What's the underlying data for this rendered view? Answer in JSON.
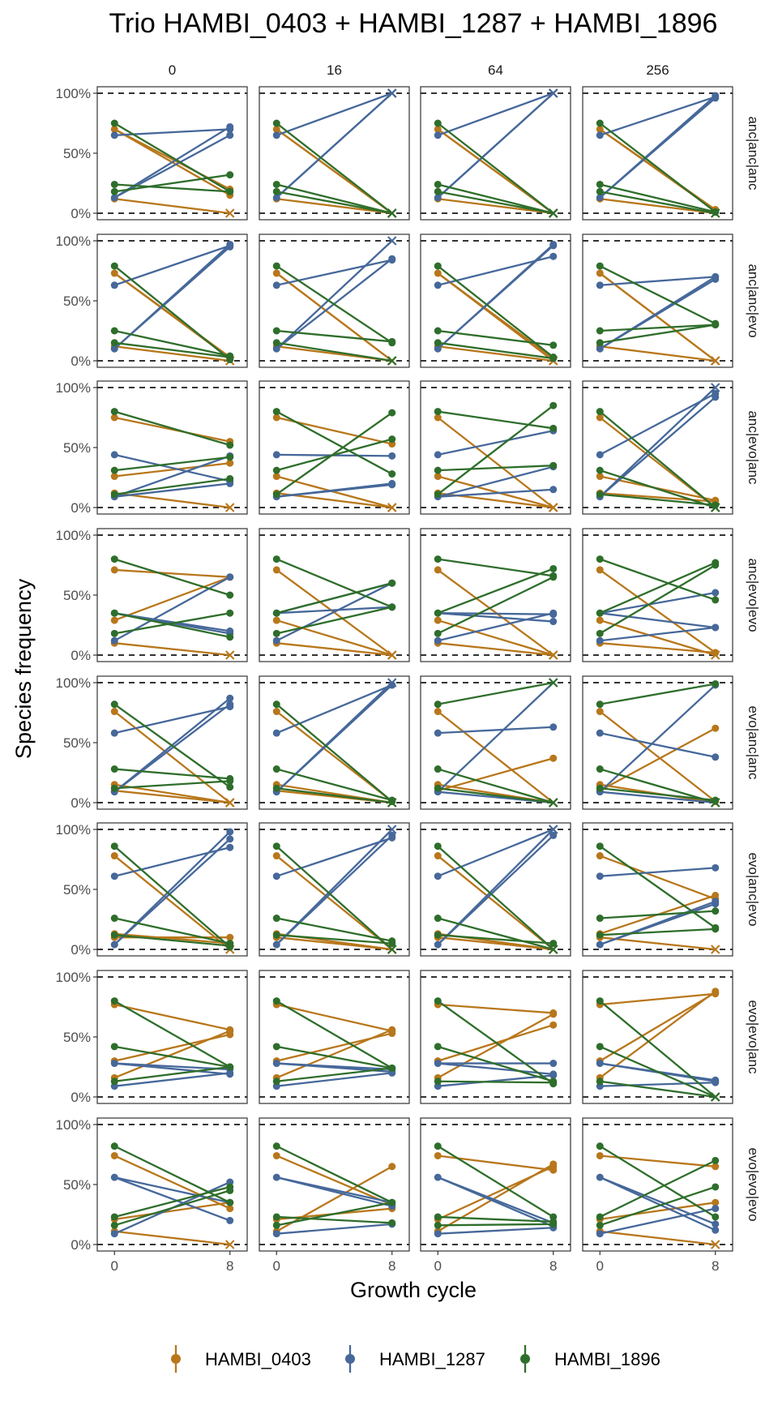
{
  "chart_data": {
    "type": "line",
    "title": "Trio HAMBI_0403 + HAMBI_1287 + HAMBI_1896",
    "xlabel": "Growth cycle",
    "ylabel": "Species frequency",
    "x_ticks": [
      "0",
      "8"
    ],
    "y_ticks": [
      "0%",
      "50%",
      "100%"
    ],
    "ylim": [
      0,
      1
    ],
    "reference_lines": [
      0,
      1
    ],
    "column_facets": [
      "0",
      "16",
      "64",
      "256"
    ],
    "row_facets": [
      "anc|anc|anc",
      "anc|anc|evo",
      "anc|evo|anc",
      "anc|evo|evo",
      "evo|anc|anc",
      "evo|anc|evo",
      "evo|evo|anc",
      "evo|evo|evo"
    ],
    "species": [
      {
        "name": "HAMBI_0403",
        "color": "#B8771B"
      },
      {
        "name": "HAMBI_1287",
        "color": "#46689A"
      },
      {
        "name": "HAMBI_1896",
        "color": "#2E6E2B"
      }
    ],
    "legend_position": "bottom",
    "start_frequencies": [
      [
        [
          0.12,
          0.7
        ],
        [
          0.65,
          0.13
        ],
        [
          0.24,
          0.18,
          0.75
        ]
      ],
      [
        [
          0.12,
          0.73
        ],
        [
          0.63,
          0.1
        ],
        [
          0.25,
          0.15,
          0.79
        ]
      ],
      [
        [
          0.12,
          0.26,
          0.75
        ],
        [
          0.44,
          0.09
        ],
        [
          0.31,
          0.11,
          0.8
        ]
      ],
      [
        [
          0.1,
          0.29,
          0.71
        ],
        [
          0.12,
          0.35
        ],
        [
          0.18,
          0.35,
          0.8
        ]
      ],
      [
        [
          0.1,
          0.15,
          0.76
        ],
        [
          0.58,
          0.09
        ],
        [
          0.28,
          0.12,
          0.82
        ]
      ],
      [
        [
          0.1,
          0.13,
          0.78
        ],
        [
          0.61,
          0.04
        ],
        [
          0.26,
          0.12,
          0.86
        ]
      ],
      [
        [
          0.16,
          0.3,
          0.77
        ],
        [
          0.09,
          0.28
        ],
        [
          0.42,
          0.13,
          0.8
        ]
      ],
      [
        [
          0.11,
          0.21,
          0.74
        ],
        [
          0.09,
          0.56
        ],
        [
          0.23,
          0.16,
          0.82
        ]
      ]
    ],
    "end_frequencies": [
      [
        [
          [
            0.0,
            0.15,
            0.2
          ],
          [
            0.7,
            0.72,
            0.65
          ],
          [
            0.18,
            0.32,
            0.18
          ]
        ],
        [
          [
            0.0,
            0.0,
            0.0
          ],
          [
            1.0,
            1.0,
            1.0
          ],
          [
            0.0,
            0.0,
            0.0
          ]
        ],
        [
          [
            0.0,
            0.0,
            0.0
          ],
          [
            1.0,
            1.0,
            1.0
          ],
          [
            0.0,
            0.0,
            0.0
          ]
        ],
        [
          [
            0.0,
            0.02,
            0.03
          ],
          [
            0.97,
            0.98,
            0.96
          ],
          [
            0.01,
            0.0,
            0.01
          ]
        ]
      ],
      [
        [
          [
            0.0,
            0.02,
            0.03
          ],
          [
            0.96,
            0.95,
            0.97
          ],
          [
            0.04,
            0.03,
            0.01
          ]
        ],
        [
          [
            0.0,
            0.0,
            0.0
          ],
          [
            0.84,
            1.0,
            0.85
          ],
          [
            0.16,
            0.0,
            0.15
          ]
        ],
        [
          [
            0.0,
            0.02,
            0.0
          ],
          [
            0.87,
            0.96,
            0.97
          ],
          [
            0.13,
            0.02,
            0.03
          ]
        ],
        [
          [
            0.0,
            0.0,
            0.0
          ],
          [
            0.7,
            0.7,
            0.68
          ],
          [
            0.3,
            0.3,
            0.31
          ]
        ]
      ],
      [
        [
          [
            0.0,
            0.37,
            0.55
          ],
          [
            0.22,
            0.2,
            0.43
          ],
          [
            0.42,
            0.24,
            0.52
          ]
        ],
        [
          [
            0.0,
            0.0,
            0.53
          ],
          [
            0.43,
            0.2,
            0.19
          ],
          [
            0.57,
            0.79,
            0.28
          ]
        ],
        [
          [
            0.0,
            0.0,
            0.0
          ],
          [
            0.64,
            0.15,
            0.34
          ],
          [
            0.35,
            0.85,
            0.66
          ]
        ],
        [
          [
            0.05,
            0.06,
            0.0
          ],
          [
            0.95,
            0.92,
            1.0
          ],
          [
            0.0,
            0.02,
            0.0
          ]
        ]
      ],
      [
        [
          [
            0.0,
            0.65,
            0.65
          ],
          [
            0.65,
            0.2,
            0.18
          ],
          [
            0.35,
            0.15,
            0.5
          ]
        ],
        [
          [
            0.0,
            0.0,
            0.0
          ],
          [
            0.6,
            0.4,
            0.6
          ],
          [
            0.4,
            0.6,
            0.4
          ]
        ],
        [
          [
            0.0,
            0.0,
            0.0
          ],
          [
            0.35,
            0.28,
            0.34
          ],
          [
            0.65,
            0.72,
            0.66
          ]
        ],
        [
          [
            0.02,
            0.0,
            0.02
          ],
          [
            0.23,
            0.23,
            0.52
          ],
          [
            0.75,
            0.77,
            0.46
          ]
        ]
      ],
      [
        [
          [
            0.0,
            0.0,
            0.0
          ],
          [
            0.8,
            0.82,
            0.87
          ],
          [
            0.2,
            0.18,
            0.13
          ]
        ],
        [
          [
            0.0,
            0.0,
            0.01
          ],
          [
            0.98,
            1.0,
            0.98
          ],
          [
            0.02,
            0.0,
            0.01
          ]
        ],
        [
          [
            0.37,
            0.0,
            0.0
          ],
          [
            0.63,
            1.0,
            0.0
          ],
          [
            0.0,
            0.0,
            1.0
          ]
        ],
        [
          [
            0.62,
            0.0,
            0.01
          ],
          [
            0.38,
            0.98,
            0.0
          ],
          [
            0.0,
            0.02,
            0.99
          ]
        ]
      ],
      [
        [
          [
            0.1,
            0.05,
            0.0
          ],
          [
            0.85,
            0.92,
            0.98
          ],
          [
            0.05,
            0.03,
            0.02
          ]
        ],
        [
          [
            0.0,
            0.0,
            0.0
          ],
          [
            0.93,
            0.95,
            1.0
          ],
          [
            0.07,
            0.05,
            0.0
          ]
        ],
        [
          [
            0.0,
            0.0,
            0.0
          ],
          [
            1.0,
            0.95,
            1.0
          ],
          [
            0.0,
            0.05,
            0.0
          ]
        ],
        [
          [
            0.0,
            0.45,
            0.42
          ],
          [
            0.68,
            0.38,
            0.4
          ],
          [
            0.32,
            0.17,
            0.18
          ]
        ]
      ],
      [
        [
          [
            0.55,
            0.52,
            0.56
          ],
          [
            0.2,
            0.23,
            0.19
          ],
          [
            0.25,
            0.25,
            0.25
          ]
        ],
        [
          [
            0.56,
            0.53,
            0.55
          ],
          [
            0.2,
            0.23,
            0.21
          ],
          [
            0.24,
            0.24,
            0.24
          ]
        ],
        [
          [
            0.69,
            0.6,
            0.7
          ],
          [
            0.18,
            0.28,
            0.19
          ],
          [
            0.13,
            0.12,
            0.11
          ]
        ],
        [
          [
            0.88,
            0.87,
            0.86
          ],
          [
            0.12,
            0.13,
            0.14
          ],
          [
            0.0,
            0.0,
            0.0
          ]
        ]
      ],
      [
        [
          [
            0.0,
            0.35,
            0.3
          ],
          [
            0.52,
            0.2,
            0.35
          ],
          [
            0.48,
            0.45,
            0.35
          ]
        ],
        [
          [
            0.65,
            0.3,
            0.33
          ],
          [
            0.17,
            0.35,
            0.32
          ],
          [
            0.18,
            0.35,
            0.35
          ]
        ],
        [
          [
            0.67,
            0.65,
            0.62
          ],
          [
            0.14,
            0.18,
            0.15
          ],
          [
            0.19,
            0.17,
            0.23
          ]
        ],
        [
          [
            0.0,
            0.35,
            0.65
          ],
          [
            0.3,
            0.17,
            0.12
          ],
          [
            0.7,
            0.48,
            0.23
          ]
        ]
      ]
    ]
  }
}
